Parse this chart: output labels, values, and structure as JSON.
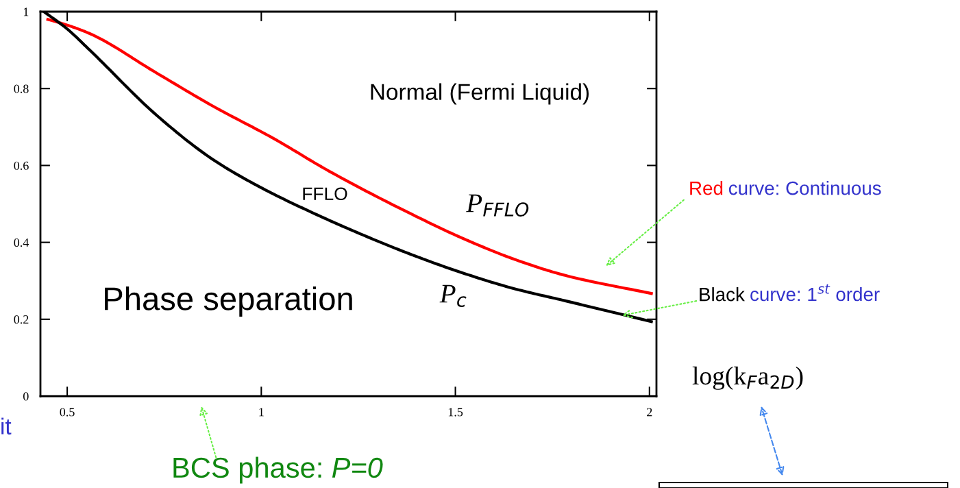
{
  "chart_data": {
    "type": "line",
    "xlim": [
      0.431,
      2.018
    ],
    "ylim": [
      0,
      1
    ],
    "xticks": [
      0.5,
      1,
      1.5,
      2
    ],
    "yticks": [
      0,
      0.2,
      0.4,
      0.6,
      0.8,
      1
    ],
    "grid": false,
    "legend": false,
    "marker": "none",
    "line_style": "solid",
    "series": [
      {
        "color": "#ff0000",
        "x": [
          0.45,
          0.5,
          0.558,
          0.731,
          0.876,
          1.032,
          1.175,
          1.39,
          1.52,
          1.652,
          1.783,
          2.005
        ],
        "values": [
          0.98,
          0.965,
          0.943,
          0.84,
          0.754,
          0.67,
          0.585,
          0.472,
          0.41,
          0.356,
          0.314,
          0.267
        ]
      },
      {
        "color": "#000000",
        "x": [
          0.44,
          0.5,
          0.558,
          0.731,
          0.876,
          1,
          1.13,
          1.26,
          1.39,
          1.52,
          1.65,
          1.783,
          2.005
        ],
        "values": [
          1,
          0.955,
          0.9,
          0.73,
          0.615,
          0.542,
          0.478,
          0.42,
          0.367,
          0.32,
          0.28,
          0.248,
          0.194
        ]
      }
    ],
    "annotations": [
      "Normal (Fermi Liquid)",
      "FFLO",
      "Phase separation",
      "P$_{FFLO}$",
      "P$_{c}$",
      "Red",
      "curve: Continuous",
      {
        "text": "Black",
        "x": 1.929,
        "y": 0.21
      },
      "curve: 1$^{st}$ order",
      "BCS phase: ",
      "P=0",
      "it",
      "log(k$_{F}$a$_{2D}$)"
    ]
  }
}
